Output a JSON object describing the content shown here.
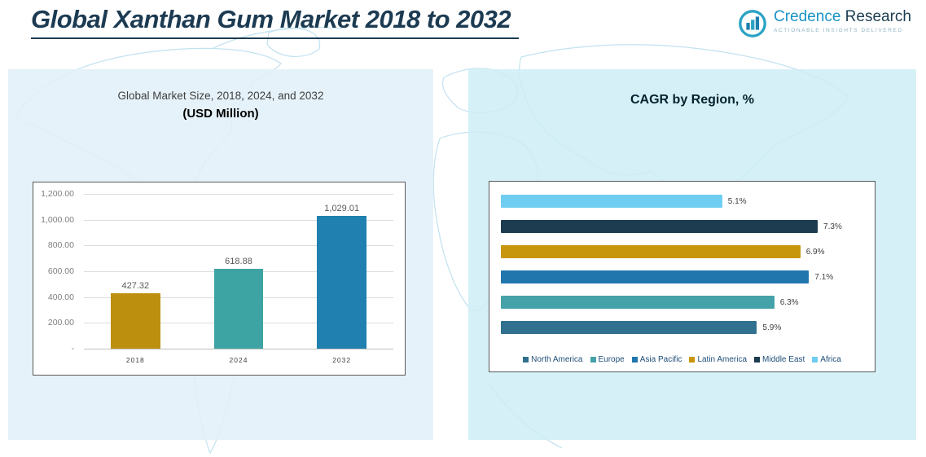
{
  "page": {
    "title": "Global Xanthan Gum Market 2018 to 2032"
  },
  "logo": {
    "brand_primary": "Credence",
    "brand_secondary": " Research",
    "tagline": "Actionable Insights Delivered",
    "accent_color": "#1a93c5"
  },
  "chart_data": [
    {
      "type": "bar",
      "title": "Global Market Size, 2018, 2024, and 2032",
      "subtitle": "(USD Million)",
      "categories": [
        "2018",
        "2024",
        "2032"
      ],
      "values": [
        427.32,
        618.88,
        1029.01
      ],
      "value_labels": [
        "427.32",
        "618.88",
        "1,029.01"
      ],
      "bar_colors": [
        "#bd8f0e",
        "#3da3a3",
        "#2080b0"
      ],
      "ylim": [
        0,
        1200
      ],
      "ytick_labels": [
        "1,200.00",
        "1,000.00",
        "800.00",
        "600.00",
        "400.00",
        "200.00",
        "-"
      ],
      "grid": true,
      "legend_position": "none"
    },
    {
      "type": "bar",
      "orientation": "horizontal",
      "title": "CAGR by Region, %",
      "categories": [
        "North America",
        "Europe",
        "Asia Pacific",
        "Latin America",
        "Middle East",
        "Africa"
      ],
      "values": [
        5.9,
        6.3,
        7.1,
        6.9,
        7.3,
        5.1
      ],
      "value_labels": [
        "5.9%",
        "6.3%",
        "7.1%",
        "6.9%",
        "7.3%",
        "5.1%"
      ],
      "bar_colors": [
        "#31708e",
        "#45a2a8",
        "#2176ae",
        "#c8960c",
        "#1d3c50",
        "#6fcdf2"
      ],
      "xlim": [
        0,
        8.35
      ],
      "grid": false,
      "legend_position": "bottom",
      "legend": [
        "North America",
        "Europe",
        "Asia Pacific",
        "Latin America",
        "Middle East",
        "Africa"
      ]
    }
  ],
  "panel_colors": {
    "left_bg": "#e2f0f8",
    "right_bg": "#ceedf6",
    "map_line": "#c2e2f0"
  }
}
